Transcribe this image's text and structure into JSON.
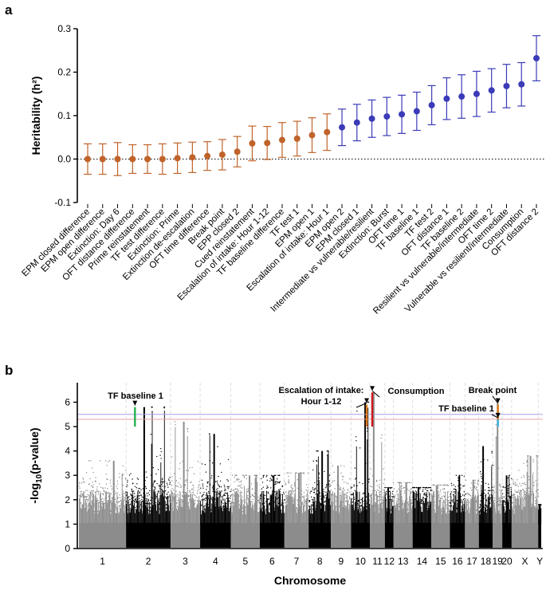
{
  "colors": {
    "orange": "#C0632A",
    "blue": "#3B3BB8",
    "light": "#8C8C8C",
    "dark": "#000000",
    "green": "#22B14C",
    "red": "#D0171A",
    "highlight_orange": "#E07B1F",
    "cyan": "#3CB4E6",
    "threshold_red": "#E8A0A0",
    "threshold_blue": "#A0A0E8"
  },
  "chart_data": [
    {
      "panel": "a",
      "type": "scatter",
      "subtype": "point-with-error-bars",
      "ylabel": "Heritability (h²)",
      "ylim": [
        -0.1,
        0.3
      ],
      "yticks": [
        "0.3",
        "0.2",
        "0.1",
        "0.0",
        "-0.1"
      ],
      "reference_line": 0,
      "points": [
        {
          "label": "EPM closed difference",
          "h2": 0.0,
          "err": 0.035,
          "group": "orange"
        },
        {
          "label": "EPM open difference",
          "h2": 0.0,
          "err": 0.035,
          "group": "orange"
        },
        {
          "label": "Extinction: Day 6",
          "h2": 0.0,
          "err": 0.038,
          "group": "orange"
        },
        {
          "label": "OFT distance difference",
          "h2": 0.0,
          "err": 0.033,
          "group": "orange"
        },
        {
          "label": "Prime reinstatement",
          "h2": 0.0,
          "err": 0.033,
          "group": "orange"
        },
        {
          "label": "TF test difference",
          "h2": 0.0,
          "err": 0.035,
          "group": "orange"
        },
        {
          "label": "Extinction: Prime",
          "h2": 0.002,
          "err": 0.035,
          "group": "orange"
        },
        {
          "label": "Extinction de-escalation",
          "h2": 0.004,
          "err": 0.035,
          "group": "orange"
        },
        {
          "label": "OFT time difference",
          "h2": 0.007,
          "err": 0.033,
          "group": "orange"
        },
        {
          "label": "Break point",
          "h2": 0.01,
          "err": 0.035,
          "group": "orange"
        },
        {
          "label": "EPP closed 2",
          "h2": 0.017,
          "err": 0.035,
          "group": "orange"
        },
        {
          "label": "Cued reinstatement",
          "h2": 0.036,
          "err": 0.04,
          "group": "orange"
        },
        {
          "label": "Escalation of intake: Hour 1-12",
          "h2": 0.037,
          "err": 0.038,
          "group": "orange"
        },
        {
          "label": "TF baseline difference",
          "h2": 0.044,
          "err": 0.04,
          "group": "orange"
        },
        {
          "label": "TF test 1",
          "h2": 0.047,
          "err": 0.04,
          "group": "orange"
        },
        {
          "label": "EPM open 1",
          "h2": 0.055,
          "err": 0.04,
          "group": "orange"
        },
        {
          "label": "Escalation of intake: Hour 1",
          "h2": 0.062,
          "err": 0.042,
          "group": "orange"
        },
        {
          "label": "EPM open 2",
          "h2": 0.073,
          "err": 0.042,
          "group": "blue"
        },
        {
          "label": "EPM closed 1",
          "h2": 0.084,
          "err": 0.042,
          "group": "blue"
        },
        {
          "label": "Intermediate vs vulnerable/resilient",
          "h2": 0.093,
          "err": 0.043,
          "group": "blue"
        },
        {
          "label": "Extinction: Burst",
          "h2": 0.098,
          "err": 0.044,
          "group": "blue"
        },
        {
          "label": "OFT time 1",
          "h2": 0.103,
          "err": 0.044,
          "group": "blue"
        },
        {
          "label": "TF baseline 1",
          "h2": 0.11,
          "err": 0.044,
          "group": "blue"
        },
        {
          "label": "TF test 2",
          "h2": 0.124,
          "err": 0.045,
          "group": "blue"
        },
        {
          "label": "OFT distance 1",
          "h2": 0.139,
          "err": 0.048,
          "group": "blue"
        },
        {
          "label": "TF baseline 2",
          "h2": 0.144,
          "err": 0.05,
          "group": "blue"
        },
        {
          "label": "Resilient vs vulnerable/intermediate",
          "h2": 0.15,
          "err": 0.052,
          "group": "blue"
        },
        {
          "label": "OFT time 2",
          "h2": 0.158,
          "err": 0.05,
          "group": "blue"
        },
        {
          "label": "Vulnerable vs resilient/intermediate",
          "h2": 0.168,
          "err": 0.05,
          "group": "blue"
        },
        {
          "label": "Consumption",
          "h2": 0.172,
          "err": 0.05,
          "group": "blue"
        },
        {
          "label": "OFT distance 2",
          "h2": 0.232,
          "err": 0.052,
          "group": "blue"
        }
      ]
    },
    {
      "panel": "b",
      "type": "scatter",
      "subtype": "manhattan",
      "xlabel": "Chromosome",
      "ylabel": "-log10(p-value)",
      "ylim": [
        0,
        6.8
      ],
      "yticks": [
        "6",
        "5",
        "4",
        "3",
        "2",
        "1",
        "0"
      ],
      "thresholds": [
        5.5,
        5.3
      ],
      "chromosomes": [
        {
          "name": "1",
          "length": 282,
          "peak": 3.6
        },
        {
          "name": "2",
          "length": 266,
          "peak": 5.8
        },
        {
          "name": "3",
          "length": 177,
          "peak": 5.2
        },
        {
          "name": "4",
          "length": 184,
          "peak": 4.7
        },
        {
          "name": "5",
          "length": 173,
          "peak": 3.0
        },
        {
          "name": "6",
          "length": 147,
          "peak": 3.0
        },
        {
          "name": "7",
          "length": 145,
          "peak": 3.1
        },
        {
          "name": "8",
          "length": 133,
          "peak": 4.0
        },
        {
          "name": "9",
          "length": 121,
          "peak": 3.4
        },
        {
          "name": "10",
          "length": 112,
          "peak": 6.0
        },
        {
          "name": "11",
          "length": 90,
          "peak": 6.4
        },
        {
          "name": "12",
          "length": 52,
          "peak": 2.5
        },
        {
          "name": "13",
          "length": 114,
          "peak": 2.7
        },
        {
          "name": "14",
          "length": 112,
          "peak": 2.5
        },
        {
          "name": "15",
          "length": 111,
          "peak": 2.6
        },
        {
          "name": "16",
          "length": 90,
          "peak": 3.0
        },
        {
          "name": "17",
          "length": 83,
          "peak": 2.8
        },
        {
          "name": "18",
          "length": 83,
          "peak": 4.2
        },
        {
          "name": "19",
          "length": 57,
          "peak": 6.0
        },
        {
          "name": "20",
          "length": 56,
          "peak": 3.0
        },
        {
          "name": "X",
          "length": 159,
          "peak": 3.8
        },
        {
          "name": "Y",
          "length": 18,
          "peak": 1.8
        }
      ],
      "annotations": [
        {
          "label": "TF baseline 1",
          "chromosome": "2",
          "value": 5.8,
          "color": "green"
        },
        {
          "label": "Escalation of intake:\nHour 1-12",
          "chromosome": "10",
          "value": 5.9,
          "color": "highlight_orange"
        },
        {
          "label": "Consumption",
          "chromosome": "11",
          "value": 6.4,
          "color": "red"
        },
        {
          "label": "Break point",
          "chromosome": "19",
          "value": 5.9,
          "color": "highlight_orange"
        },
        {
          "label": "TF baseline 1",
          "chromosome": "19",
          "value": 5.3,
          "color": "cyan"
        }
      ]
    }
  ]
}
